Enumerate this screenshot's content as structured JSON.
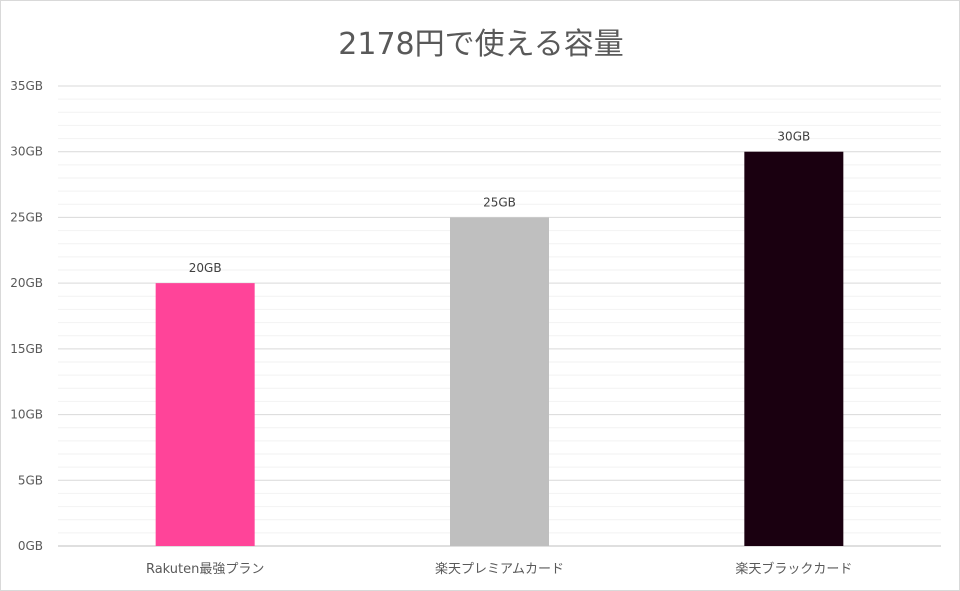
{
  "chart_data": {
    "type": "bar",
    "title": "2178円で使える容量",
    "xlabel": "",
    "ylabel": "",
    "categories": [
      "Rakuten最強プラン",
      "楽天プレミアムカード",
      "楽天ブラックカード"
    ],
    "values": [
      20,
      25,
      30
    ],
    "data_labels": [
      "20GB",
      "25GB",
      "30GB"
    ],
    "colors": [
      "#ff4499",
      "#bfbfbf",
      "#1a0010"
    ],
    "ylim": [
      0,
      35
    ],
    "yticks": [
      0,
      5,
      10,
      15,
      20,
      25,
      30,
      35
    ],
    "ytick_labels": [
      "0GB",
      "5GB",
      "10GB",
      "15GB",
      "20GB",
      "25GB",
      "30GB",
      "35GB"
    ],
    "grid": true,
    "legend": "none"
  }
}
